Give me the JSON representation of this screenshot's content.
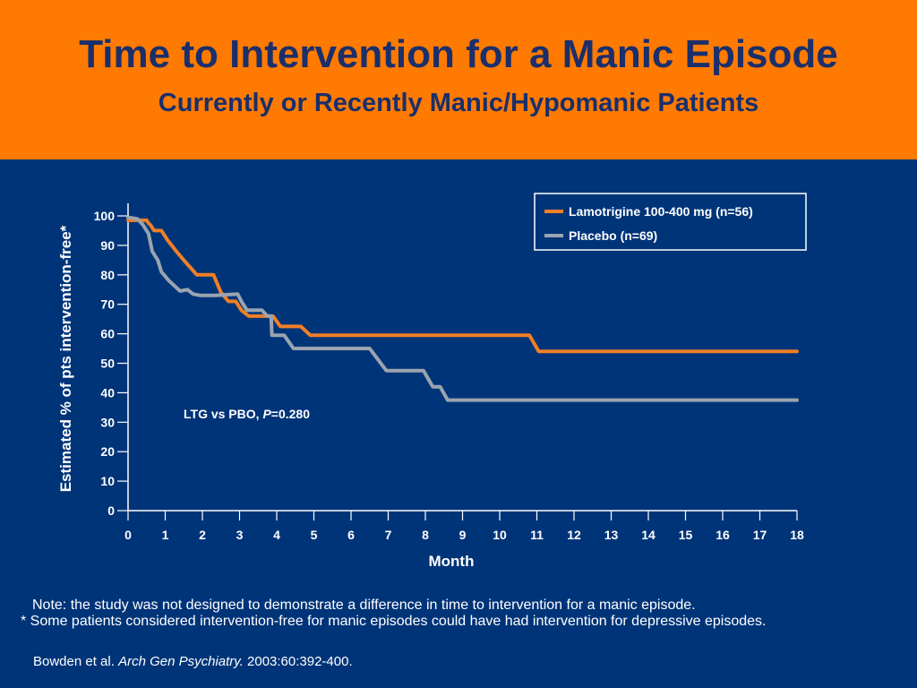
{
  "slide": {
    "title": "Time to Intervention for a Manic Episode",
    "subtitle": "Currently or Recently Manic/Hypomanic Patients"
  },
  "notes": {
    "note1": "Note: the study was not designed to demonstrate a difference in time to intervention for a manic episode.",
    "note2": "* Some patients considered intervention-free for manic episodes could have had intervention for depressive episodes."
  },
  "citation": {
    "prefix": "Bowden et al. ",
    "journal": "Arch Gen Psychiatry.",
    "suffix": " 2003:60:392-400."
  },
  "colors": {
    "header_bg": "#FF7A00",
    "title_text": "#1A2F6B",
    "slide_bg": "#003478",
    "ltg_line": "#F07F26",
    "pbo_line": "#9AA4B0"
  },
  "chart_data": {
    "type": "line",
    "xlabel": "Month",
    "ylabel": "Estimated % of pts intervention-free*",
    "xlim": [
      0,
      18
    ],
    "ylim": [
      0,
      100
    ],
    "xticks": [
      0,
      1,
      2,
      3,
      4,
      5,
      6,
      7,
      8,
      9,
      10,
      11,
      12,
      13,
      14,
      15,
      16,
      17,
      18
    ],
    "yticks": [
      0,
      10,
      20,
      30,
      40,
      50,
      60,
      70,
      80,
      90,
      100
    ],
    "legend_position": "top-right",
    "annotation": {
      "prefix": "LTG vs PBO, ",
      "italic": "P",
      "suffix": "=0.280"
    },
    "series": [
      {
        "name": "Lamotrigine 100-400 mg (n=56)",
        "color": "#F07F26",
        "points": [
          [
            0,
            98.5
          ],
          [
            0.4,
            98.5
          ],
          [
            0.5,
            98.5
          ],
          [
            0.55,
            97.5
          ],
          [
            0.6,
            97
          ],
          [
            0.7,
            95
          ],
          [
            0.9,
            95
          ],
          [
            1.05,
            92
          ],
          [
            1.3,
            88
          ],
          [
            1.5,
            85
          ],
          [
            1.85,
            80
          ],
          [
            2.3,
            80
          ],
          [
            2.5,
            74
          ],
          [
            2.7,
            71
          ],
          [
            2.9,
            71
          ],
          [
            3.05,
            68
          ],
          [
            3.25,
            66
          ],
          [
            3.6,
            66
          ],
          [
            3.9,
            66
          ],
          [
            4.1,
            62.5
          ],
          [
            4.65,
            62.5
          ],
          [
            4.9,
            59.5
          ],
          [
            10.8,
            59.5
          ],
          [
            11.05,
            54
          ],
          [
            18,
            54
          ]
        ]
      },
      {
        "name": "Placebo (n=69)",
        "color": "#9AA4B0",
        "points": [
          [
            0,
            99.5
          ],
          [
            0.25,
            99
          ],
          [
            0.4,
            97
          ],
          [
            0.55,
            94
          ],
          [
            0.65,
            88
          ],
          [
            0.8,
            85
          ],
          [
            0.9,
            81
          ],
          [
            1.1,
            78
          ],
          [
            1.4,
            74.5
          ],
          [
            1.6,
            75
          ],
          [
            1.75,
            73.5
          ],
          [
            1.95,
            73
          ],
          [
            2.35,
            73
          ],
          [
            2.95,
            73.5
          ],
          [
            3.05,
            71
          ],
          [
            3.2,
            68
          ],
          [
            3.6,
            68
          ],
          [
            3.75,
            66
          ],
          [
            3.85,
            66
          ],
          [
            3.87,
            59.5
          ],
          [
            4.2,
            59.5
          ],
          [
            4.45,
            55
          ],
          [
            6.5,
            55
          ],
          [
            6.95,
            47.5
          ],
          [
            7.95,
            47.5
          ],
          [
            8.2,
            42
          ],
          [
            8.4,
            42
          ],
          [
            8.6,
            37.5
          ],
          [
            18,
            37.5
          ]
        ]
      }
    ]
  }
}
